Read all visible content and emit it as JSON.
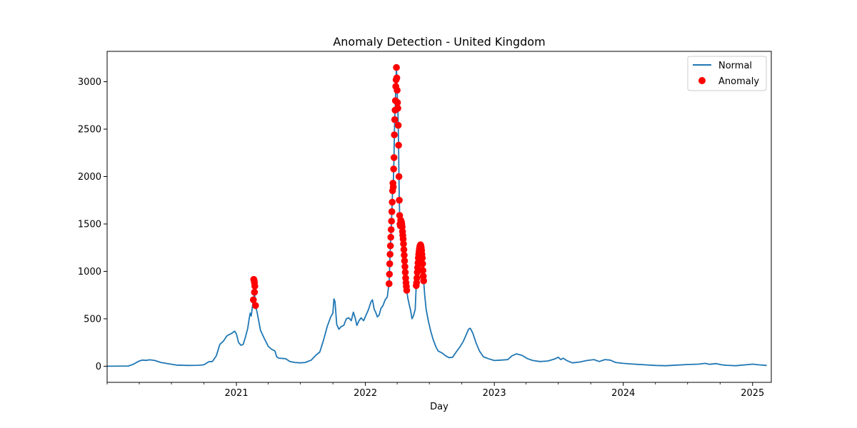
{
  "chart_data": {
    "type": "line",
    "title": "Anomaly Detection - United Kingdom",
    "xlabel": "Day",
    "ylabel": "",
    "x_axis": {
      "type": "date",
      "range": [
        "2020-01-01",
        "2025-02-23"
      ],
      "tick_labels": [
        "2021",
        "2022",
        "2023",
        "2024",
        "2025"
      ],
      "tick_values": [
        "2021-01-01",
        "2022-01-01",
        "2023-01-01",
        "2024-01-01",
        "2025-01-01"
      ]
    },
    "y_axis": {
      "range": [
        -170,
        3320
      ],
      "tick_values": [
        0,
        500,
        1000,
        1500,
        2000,
        2500,
        3000
      ],
      "tick_labels": [
        "0",
        "500",
        "1000",
        "1500",
        "2000",
        "2500",
        "3000"
      ]
    },
    "grid": false,
    "legend": {
      "placement": "top-right",
      "entries": [
        "Normal",
        "Anomaly"
      ]
    },
    "series": [
      {
        "name": "Normal",
        "kind": "line",
        "color": "#1f77b4",
        "points": [
          [
            "2020-01-01",
            0
          ],
          [
            "2020-03-01",
            2
          ],
          [
            "2020-03-15",
            20
          ],
          [
            "2020-04-01",
            55
          ],
          [
            "2020-04-10",
            65
          ],
          [
            "2020-04-20",
            62
          ],
          [
            "2020-05-01",
            68
          ],
          [
            "2020-05-15",
            60
          ],
          [
            "2020-06-01",
            40
          ],
          [
            "2020-06-20",
            28
          ],
          [
            "2020-07-15",
            12
          ],
          [
            "2020-08-15",
            8
          ],
          [
            "2020-09-15",
            10
          ],
          [
            "2020-10-01",
            15
          ],
          [
            "2020-10-15",
            48
          ],
          [
            "2020-10-25",
            50
          ],
          [
            "2020-11-05",
            110
          ],
          [
            "2020-11-15",
            230
          ],
          [
            "2020-11-25",
            265
          ],
          [
            "2020-12-05",
            320
          ],
          [
            "2020-12-12",
            335
          ],
          [
            "2020-12-20",
            350
          ],
          [
            "2020-12-27",
            370
          ],
          [
            "2021-01-01",
            340
          ],
          [
            "2021-01-07",
            250
          ],
          [
            "2021-01-14",
            220
          ],
          [
            "2021-01-20",
            230
          ],
          [
            "2021-01-26",
            300
          ],
          [
            "2021-02-02",
            400
          ],
          [
            "2021-02-06",
            500
          ],
          [
            "2021-02-09",
            560
          ],
          [
            "2021-02-12",
            530
          ],
          [
            "2021-02-15",
            620
          ],
          [
            "2021-02-18",
            700
          ],
          [
            "2021-02-21",
            780
          ],
          [
            "2021-02-24",
            640
          ],
          [
            "2021-03-01",
            560
          ],
          [
            "2021-03-06",
            460
          ],
          [
            "2021-03-10",
            380
          ],
          [
            "2021-03-20",
            300
          ],
          [
            "2021-04-01",
            210
          ],
          [
            "2021-04-10",
            180
          ],
          [
            "2021-04-20",
            160
          ],
          [
            "2021-04-25",
            100
          ],
          [
            "2021-05-01",
            85
          ],
          [
            "2021-05-20",
            80
          ],
          [
            "2021-06-01",
            50
          ],
          [
            "2021-06-15",
            40
          ],
          [
            "2021-07-01",
            35
          ],
          [
            "2021-07-15",
            40
          ],
          [
            "2021-08-01",
            65
          ],
          [
            "2021-08-15",
            120
          ],
          [
            "2021-08-25",
            150
          ],
          [
            "2021-09-05",
            280
          ],
          [
            "2021-09-15",
            420
          ],
          [
            "2021-09-25",
            520
          ],
          [
            "2021-10-01",
            560
          ],
          [
            "2021-10-04",
            710
          ],
          [
            "2021-10-07",
            680
          ],
          [
            "2021-10-12",
            440
          ],
          [
            "2021-10-18",
            390
          ],
          [
            "2021-10-25",
            420
          ],
          [
            "2021-11-01",
            430
          ],
          [
            "2021-11-08",
            500
          ],
          [
            "2021-11-15",
            510
          ],
          [
            "2021-11-22",
            480
          ],
          [
            "2021-11-28",
            570
          ],
          [
            "2021-12-03",
            510
          ],
          [
            "2021-12-08",
            430
          ],
          [
            "2021-12-14",
            480
          ],
          [
            "2021-12-20",
            510
          ],
          [
            "2021-12-27",
            480
          ],
          [
            "2022-01-03",
            540
          ],
          [
            "2022-01-10",
            600
          ],
          [
            "2022-01-17",
            680
          ],
          [
            "2022-01-21",
            700
          ],
          [
            "2022-01-26",
            600
          ],
          [
            "2022-01-30",
            570
          ],
          [
            "2022-02-04",
            520
          ],
          [
            "2022-02-09",
            540
          ],
          [
            "2022-02-14",
            610
          ],
          [
            "2022-02-20",
            640
          ],
          [
            "2022-02-26",
            700
          ],
          [
            "2022-03-04",
            730
          ],
          [
            "2022-03-08",
            850
          ]
        ]
      },
      {
        "name": "Anomaly",
        "kind": "scatter",
        "color": "#ff0000",
        "points": []
      }
    ]
  }
}
